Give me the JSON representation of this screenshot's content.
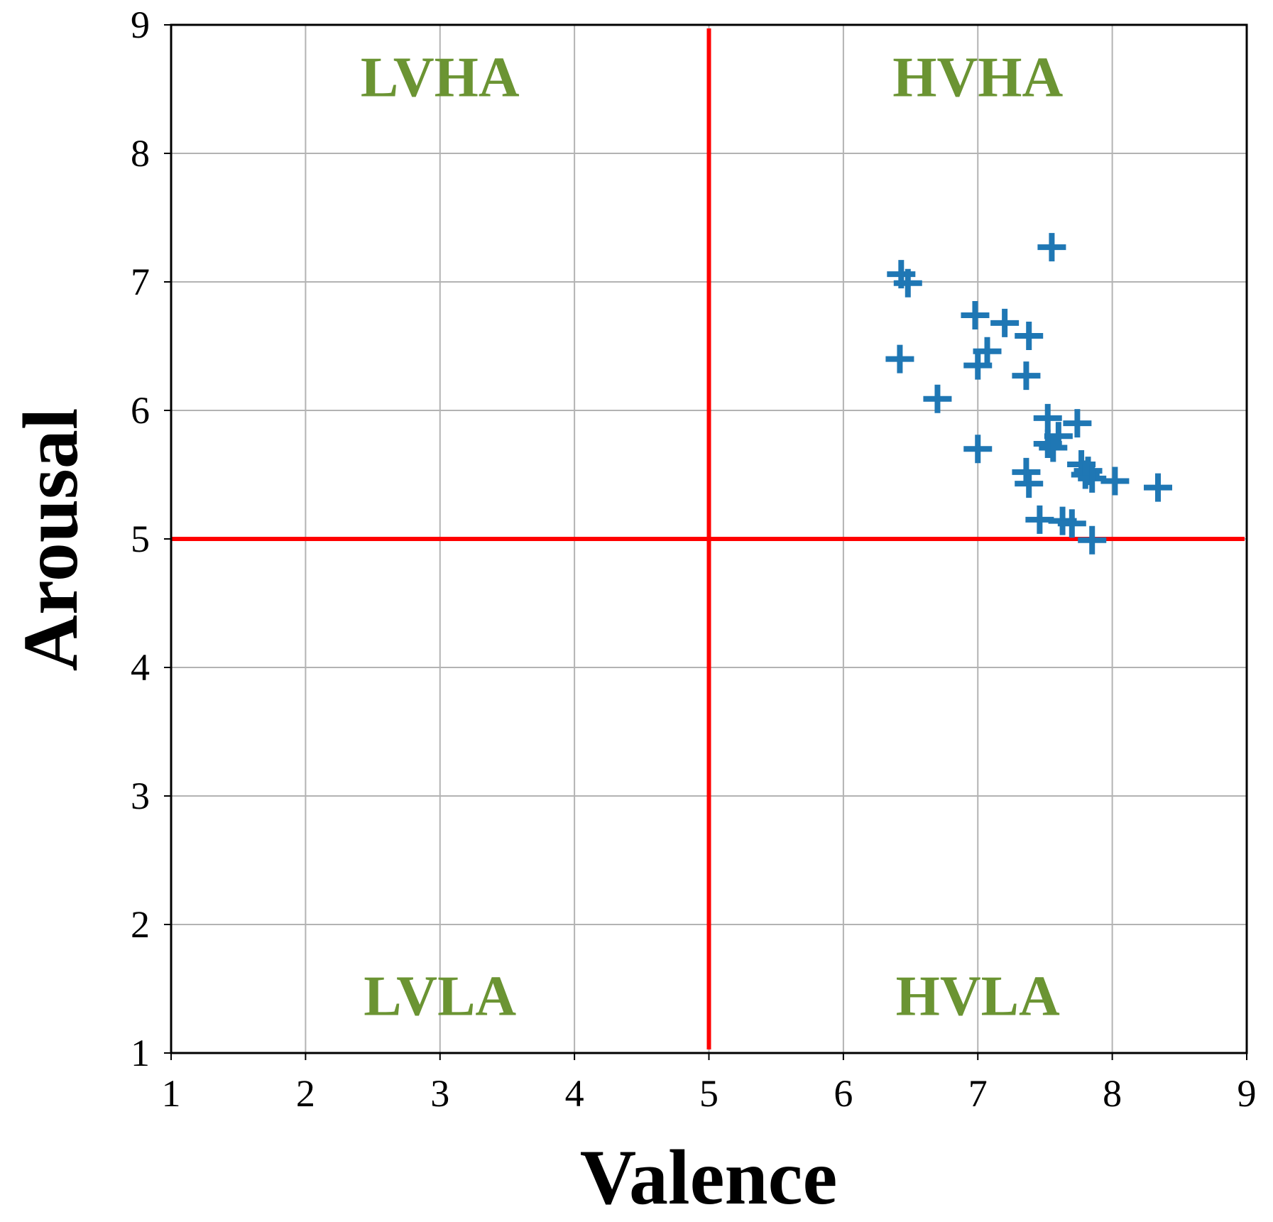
{
  "chart_data": {
    "type": "scatter",
    "title": "",
    "xlabel": "Valence",
    "ylabel": "Arousal",
    "xlim": [
      1,
      9
    ],
    "ylim": [
      1,
      9
    ],
    "xticks": [
      "1",
      "2",
      "3",
      "4",
      "5",
      "6",
      "7",
      "8",
      "9"
    ],
    "yticks": [
      "1",
      "2",
      "3",
      "4",
      "5",
      "6",
      "7",
      "8",
      "9"
    ],
    "grid": true,
    "marker": "plus",
    "colors": {
      "points": "#1f77b4",
      "dividers": "#ff0000",
      "quadrant_labels": "#6b9433",
      "grid": "#b3b3b3"
    },
    "dividers": {
      "x": 5,
      "y": 5
    },
    "quadrant_labels": [
      {
        "text": "LVHA",
        "x": 3,
        "y": 8.6
      },
      {
        "text": "HVHA",
        "x": 7,
        "y": 8.6
      },
      {
        "text": "LVLA",
        "x": 3,
        "y": 1.45
      },
      {
        "text": "HVLA",
        "x": 7,
        "y": 1.45
      }
    ],
    "points": [
      {
        "x": 7.55,
        "y": 7.27
      },
      {
        "x": 6.43,
        "y": 7.06
      },
      {
        "x": 6.48,
        "y": 6.99
      },
      {
        "x": 6.98,
        "y": 6.74
      },
      {
        "x": 7.2,
        "y": 6.68
      },
      {
        "x": 7.38,
        "y": 6.58
      },
      {
        "x": 7.07,
        "y": 6.46
      },
      {
        "x": 6.42,
        "y": 6.4
      },
      {
        "x": 7.0,
        "y": 6.35
      },
      {
        "x": 7.36,
        "y": 6.27
      },
      {
        "x": 6.7,
        "y": 6.09
      },
      {
        "x": 7.52,
        "y": 5.94
      },
      {
        "x": 7.74,
        "y": 5.9
      },
      {
        "x": 7.6,
        "y": 5.8
      },
      {
        "x": 7.52,
        "y": 5.74
      },
      {
        "x": 7.56,
        "y": 5.71
      },
      {
        "x": 7.0,
        "y": 5.7
      },
      {
        "x": 7.77,
        "y": 5.58
      },
      {
        "x": 7.82,
        "y": 5.53
      },
      {
        "x": 7.36,
        "y": 5.52
      },
      {
        "x": 7.8,
        "y": 5.5
      },
      {
        "x": 7.85,
        "y": 5.47
      },
      {
        "x": 8.02,
        "y": 5.45
      },
      {
        "x": 7.38,
        "y": 5.43
      },
      {
        "x": 8.34,
        "y": 5.4
      },
      {
        "x": 7.46,
        "y": 5.15
      },
      {
        "x": 7.63,
        "y": 5.14
      },
      {
        "x": 7.7,
        "y": 5.12
      },
      {
        "x": 7.85,
        "y": 4.99
      }
    ]
  }
}
